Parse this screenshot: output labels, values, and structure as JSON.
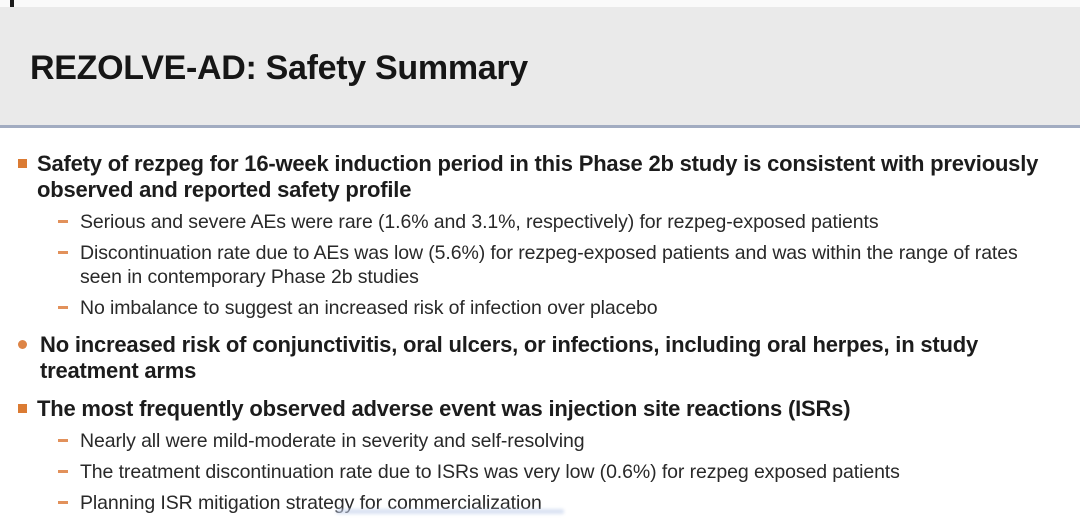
{
  "slide": {
    "title": "REZOLVE-AD: Safety Summary",
    "bullets": [
      {
        "level": 1,
        "marker": "square",
        "text": "Safety of rezpeg for 16-week induction period in this Phase 2b study is consistent with previously observed and reported safety profile"
      },
      {
        "level": 2,
        "marker": "dash",
        "text": "Serious and severe AEs were rare (1.6% and 3.1%, respectively) for rezpeg-exposed patients"
      },
      {
        "level": 2,
        "marker": "dash",
        "text": "Discontinuation rate due to AEs was low (5.6%) for rezpeg-exposed patients and was within the range of rates seen in contemporary Phase 2b studies"
      },
      {
        "level": 2,
        "marker": "dash",
        "text": "No imbalance to suggest an increased risk of infection over placebo"
      },
      {
        "level": 1,
        "marker": "dot",
        "text": "No increased risk of conjunctivitis, oral ulcers, or infections, including oral herpes, in study treatment arms"
      },
      {
        "level": 1,
        "marker": "square",
        "text": "The most frequently observed adverse event was injection site reactions (ISRs)"
      },
      {
        "level": 2,
        "marker": "dash",
        "text": "Nearly all were mild-moderate in severity and self-resolving"
      },
      {
        "level": 2,
        "marker": "dash",
        "text": "The treatment discontinuation rate due to ISRs was very low (0.6%) for rezpeg exposed patients"
      },
      {
        "level": 2,
        "marker": "dash",
        "text": "Planning ISR mitigation strategy for commercialization"
      }
    ],
    "colors": {
      "accent_square_bullet": "#db7b33",
      "accent_round_bullet": "#dd8446",
      "accent_dash_bullet": "#e2915b",
      "header_background": "#eaeaea",
      "header_rule": "#a2acc1",
      "body_text": "#1c1c1c",
      "footnote_fragment_blue": "#c5d2ec"
    }
  }
}
